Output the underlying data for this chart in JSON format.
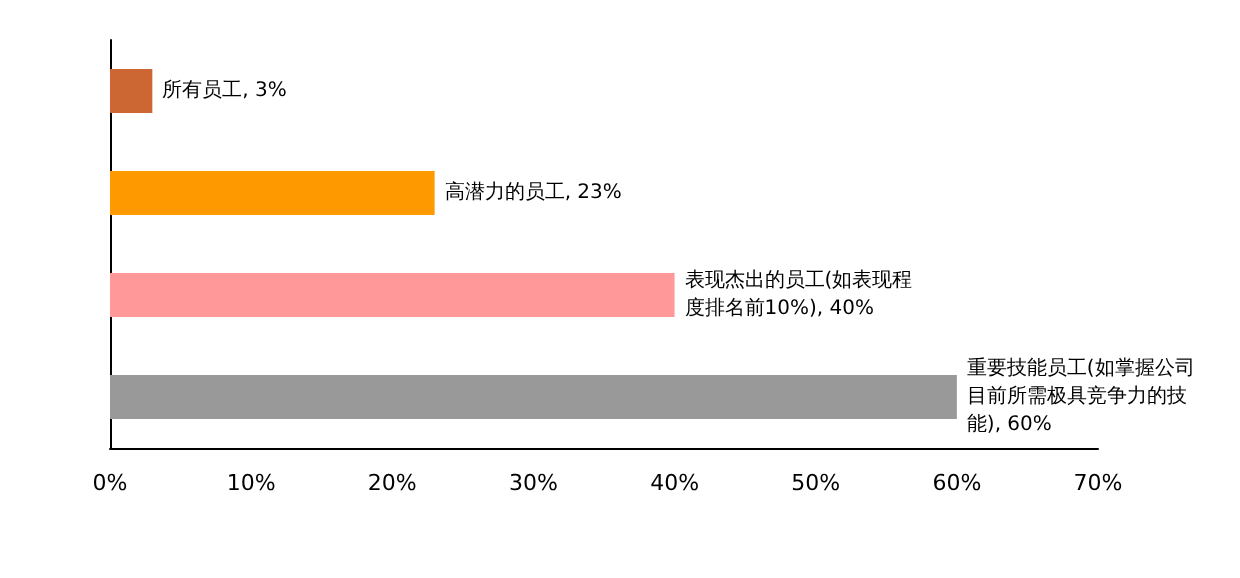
{
  "chart_data": {
    "type": "bar",
    "orientation": "horizontal",
    "categories": [
      null,
      null,
      null,
      null
    ],
    "values": [
      3,
      23,
      40,
      60
    ],
    "colors": [
      "#cc6633",
      "#ff9900",
      "#ff9999",
      "#999999"
    ],
    "value_labels": [
      "所有员工, 3%",
      "高潜力的员工, 23%",
      "表现杰出的员工(如表现程度排名前10%), 40%",
      "重要技能员工(如掌握公司目前所需极具竞争力的技能), 60%"
    ],
    "xlim": [
      0,
      70
    ],
    "xticks": [
      {
        "value": 0,
        "label": "0%"
      },
      {
        "value": 10,
        "label": "10%"
      },
      {
        "value": 20,
        "label": "20%"
      },
      {
        "value": 30,
        "label": "30%"
      },
      {
        "value": 40,
        "label": "40%"
      },
      {
        "value": 50,
        "label": "50%"
      },
      {
        "value": 60,
        "label": "60%"
      },
      {
        "value": 70,
        "label": "70%"
      }
    ],
    "tick_labels": "x"
  }
}
